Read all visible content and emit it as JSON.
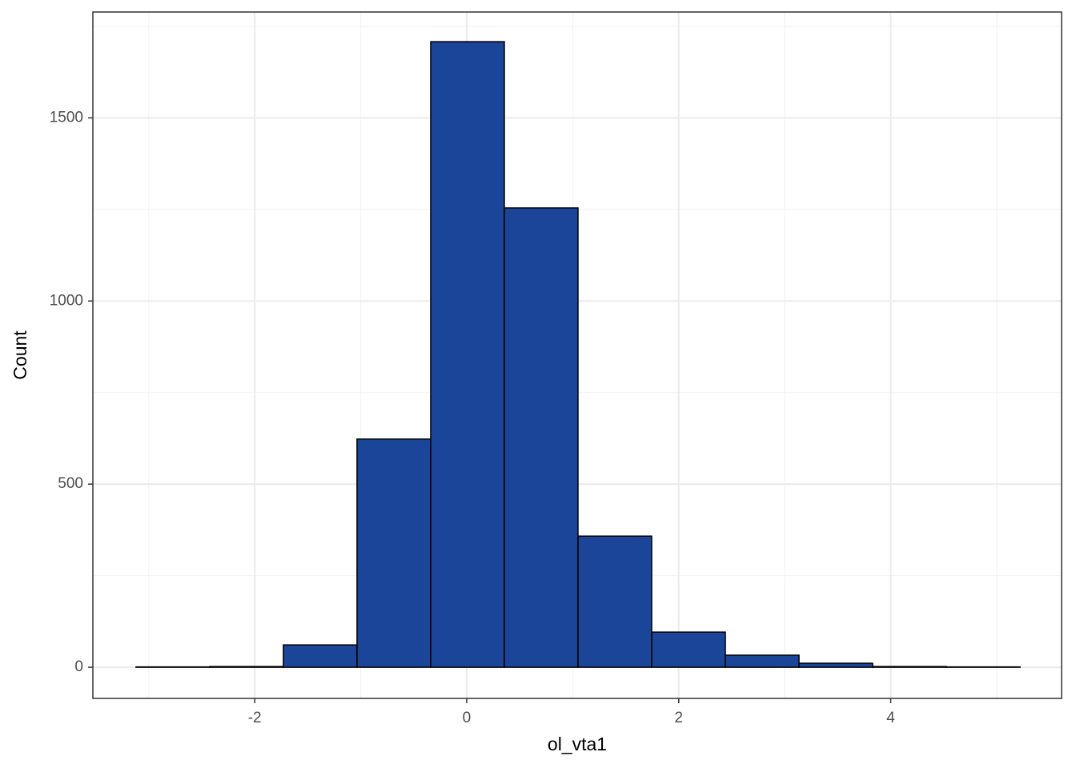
{
  "chart_data": {
    "type": "histogram",
    "x_label": "ol_vta1",
    "y_label": "Count",
    "bins": [
      -3.12,
      -2.425,
      -1.73,
      -1.035,
      -0.34,
      0.355,
      1.05,
      1.745,
      2.44,
      3.135,
      3.83,
      4.525,
      5.22
    ],
    "values": [
      1,
      2,
      61,
      623,
      1708,
      1254,
      358,
      96,
      33,
      11,
      2,
      1
    ],
    "color": "#1a4599",
    "edgecolor": "#000000",
    "xlim": [
      -3.527,
      5.612
    ],
    "ylim": [
      -85,
      1789
    ],
    "xticks": [
      -2,
      0,
      2,
      4
    ],
    "yticks": [
      0,
      500,
      1000,
      1500
    ],
    "x_minor_grid": [
      -3,
      -1,
      1,
      3,
      5
    ],
    "y_minor_grid": [
      250,
      750,
      1250,
      1750
    ],
    "grid": true
  }
}
